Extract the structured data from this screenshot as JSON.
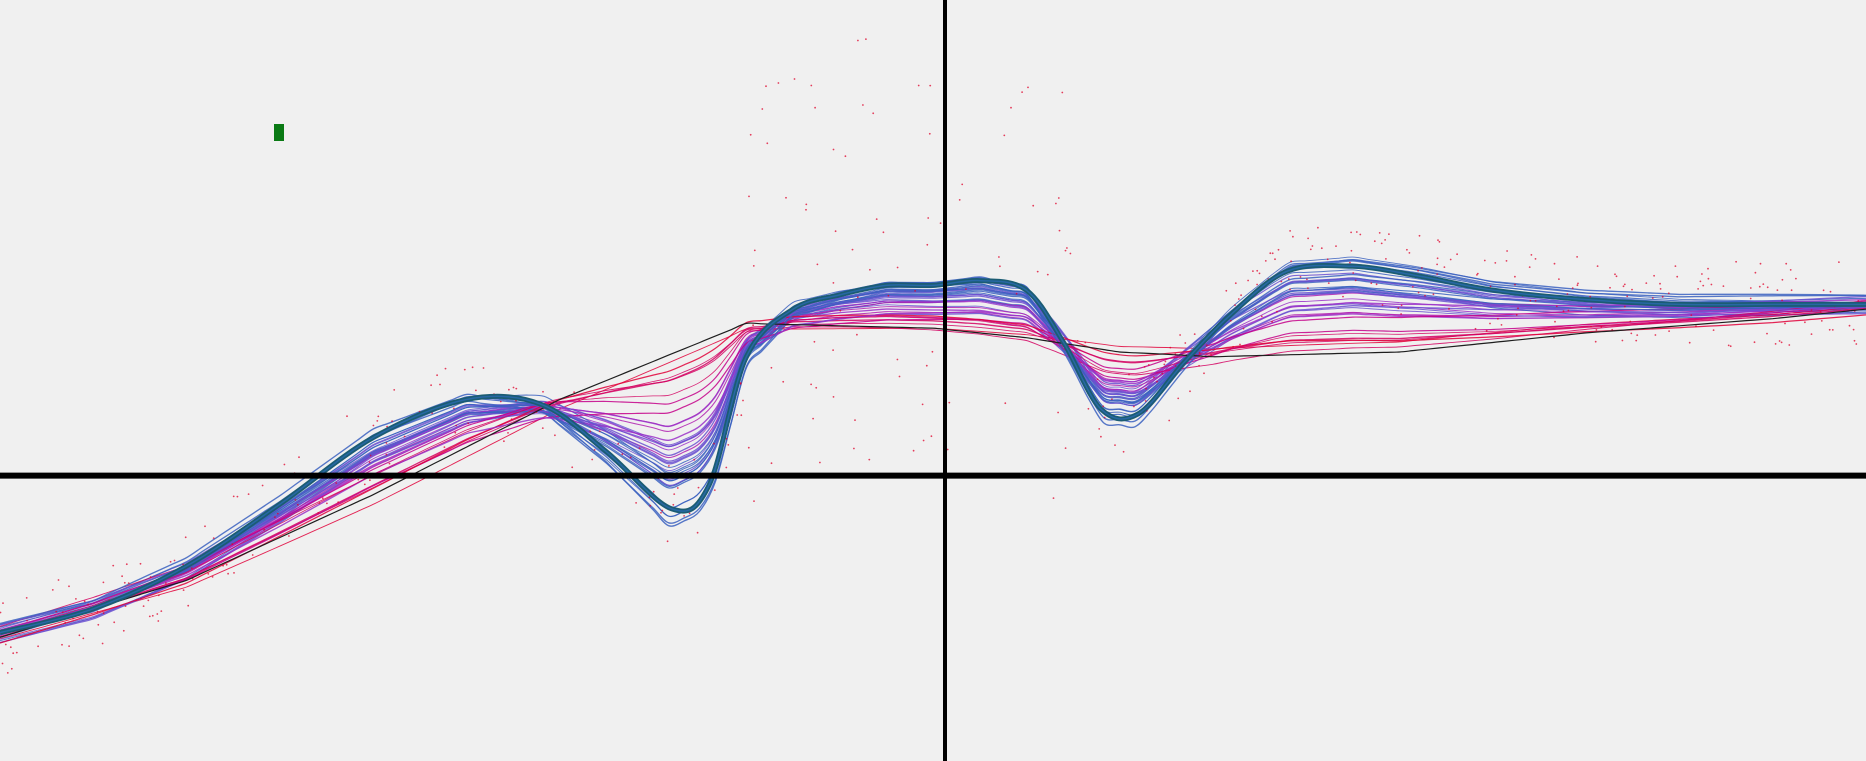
{
  "chart_data": {
    "type": "line",
    "title": "",
    "xlabel": "",
    "ylabel": "",
    "xlim": [
      -1,
      1
    ],
    "ylim": [
      -0.6,
      1.0
    ],
    "grid": false,
    "legend": "none",
    "axes": {
      "x_axis_at_y": 0,
      "y_axis_at_x": 0
    },
    "colors": {
      "background": "#f0f0f0",
      "axis": "#000000",
      "marker": "#0a7a14",
      "best_fit": "#1b5c73",
      "target": "#1e1e1e",
      "ensemble": [
        "#e0003a",
        "#d40060",
        "#c4008a",
        "#b020b0",
        "#9a30c8",
        "#6a50d0",
        "#3a60c0"
      ]
    },
    "series": [
      {
        "role": "target",
        "x": [
          -1.0,
          -0.8,
          -0.6,
          -0.4,
          -0.2,
          0.0,
          0.1,
          0.2,
          0.3,
          0.5,
          0.7,
          0.9,
          1.0
        ],
        "y": [
          -0.34,
          -0.22,
          -0.04,
          0.16,
          0.32,
          0.31,
          0.29,
          0.26,
          0.25,
          0.26,
          0.3,
          0.33,
          0.35
        ]
      },
      {
        "role": "best_fit",
        "x": [
          -1.0,
          -0.9,
          -0.8,
          -0.7,
          -0.6,
          -0.5,
          -0.42,
          -0.35,
          -0.28,
          -0.24,
          -0.2,
          -0.15,
          -0.1,
          -0.05,
          0.0,
          0.05,
          0.1,
          0.14,
          0.18,
          0.22,
          0.27,
          0.32,
          0.38,
          0.45,
          0.52,
          0.6,
          0.7,
          0.8,
          0.9,
          1.0
        ],
        "y": [
          -0.33,
          -0.28,
          -0.19,
          -0.06,
          0.08,
          0.16,
          0.15,
          0.05,
          -0.07,
          -0.02,
          0.25,
          0.35,
          0.38,
          0.4,
          0.4,
          0.41,
          0.39,
          0.28,
          0.14,
          0.13,
          0.24,
          0.34,
          0.43,
          0.44,
          0.42,
          0.39,
          0.37,
          0.36,
          0.36,
          0.36
        ]
      }
    ],
    "ensemble_size": 40,
    "marker_value": {
      "x": -0.7,
      "y": 0.725
    }
  }
}
